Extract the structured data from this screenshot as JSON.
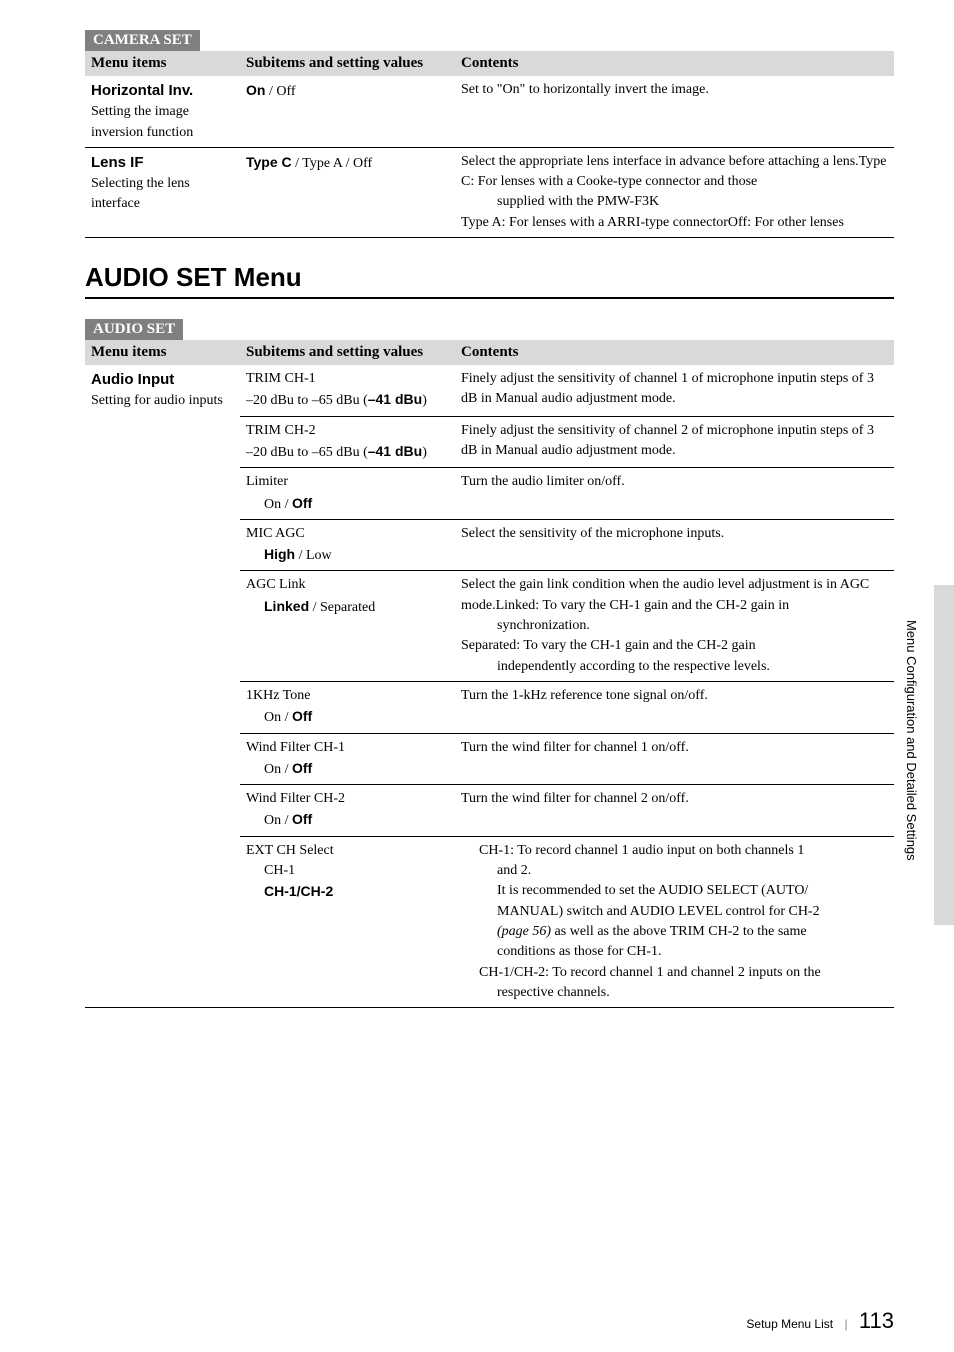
{
  "camera_set": {
    "badge": "CAMERA SET",
    "headers": {
      "menu": "Menu items",
      "sub": "Subitems and setting values",
      "cont": "Contents"
    },
    "rows": [
      {
        "menu_title": "Horizontal Inv.",
        "menu_desc": "Setting the image inversion function",
        "sub_bold": "On",
        "sub_rest": " / Off",
        "content_lines": [
          "Set to \"On\" to horizontally invert the image."
        ]
      },
      {
        "menu_title": "Lens IF",
        "menu_desc": "Selecting the lens interface",
        "sub_bold": "Type C",
        "sub_rest": " / Type A / Off",
        "content_lines": [
          "Select the appropriate lens interface in advance before attaching a lens.",
          "Type C: For lenses with a Cooke-type connector and those",
          "__IND__supplied with the PMW-F3K",
          "Type A: For lenses with a ARRI-type connector",
          "Off: For other lenses"
        ]
      }
    ]
  },
  "audio_heading": "AUDIO SET Menu",
  "audio_set": {
    "badge": "AUDIO SET",
    "headers": {
      "menu": "Menu items",
      "sub": "Subitems and setting values",
      "cont": "Contents"
    },
    "group": {
      "menu_title": "Audio Input",
      "menu_desc": "Setting for audio inputs",
      "subrows": [
        {
          "sub_lines": [
            {
              "plain": "TRIM CH-1"
            },
            {
              "plain": "–20 dBu to –65 dBu (",
              "bold": "–41 dBu",
              "after": ")"
            }
          ],
          "content_lines": [
            "Finely adjust the sensitivity of channel 1 of microphone input",
            "in steps of 3 dB in Manual audio adjustment mode."
          ]
        },
        {
          "sub_lines": [
            {
              "plain": "TRIM CH-2"
            },
            {
              "plain": "–20 dBu to –65 dBu (",
              "bold": "–41 dBu",
              "after": ")"
            }
          ],
          "content_lines": [
            "Finely adjust the sensitivity of channel 2 of microphone input",
            "in steps of 3 dB in Manual audio adjustment mode."
          ]
        },
        {
          "sub_lines": [
            {
              "plain": "Limiter"
            },
            {
              "indent": true,
              "plain": "On / ",
              "bold": "Off"
            }
          ],
          "content_lines": [
            "Turn the audio limiter on/off."
          ]
        },
        {
          "sub_lines": [
            {
              "plain": "MIC AGC"
            },
            {
              "indent": true,
              "bold": "High",
              "after": " / Low"
            }
          ],
          "content_lines": [
            "Select the sensitivity of the microphone inputs."
          ]
        },
        {
          "sub_lines": [
            {
              "plain": "AGC Link"
            },
            {
              "indent": true,
              "bold": "Linked",
              "after": " / Separated"
            }
          ],
          "content_lines": [
            "Select the gain link condition when the audio level adjustment is in AGC mode.",
            "Linked: To vary the CH-1 gain and the CH-2 gain in",
            "__IND__synchronization.",
            "Separated: To vary the CH-1 gain and the CH-2 gain",
            "__IND__independently according to the respective levels."
          ]
        },
        {
          "sub_lines": [
            {
              "plain": "1KHz Tone"
            },
            {
              "indent": true,
              "plain": "On / ",
              "bold": "Off"
            }
          ],
          "content_lines": [
            "Turn the 1-kHz reference tone signal on/off."
          ]
        },
        {
          "sub_lines": [
            {
              "plain": "Wind Filter CH-1"
            },
            {
              "indent": true,
              "plain": "On / ",
              "bold": "Off"
            }
          ],
          "content_lines": [
            "Turn the wind filter for channel 1 on/off."
          ]
        },
        {
          "sub_lines": [
            {
              "plain": "Wind Filter CH-2"
            },
            {
              "indent": true,
              "plain": "On / ",
              "bold": "Off"
            }
          ],
          "content_lines": [
            "Turn the wind filter for channel 2 on/off."
          ]
        },
        {
          "sub_lines": [
            {
              "plain": "EXT CH Select"
            },
            {
              "indent": true,
              "plain": "CH-1"
            },
            {
              "indent": true,
              "bold": "CH-1/CH-2"
            }
          ],
          "content_lines": [
            "__IND0__CH-1: To record channel 1 audio input on both channels 1",
            "__IND__and 2.",
            "__IND__It is recommended to set the AUDIO SELECT (AUTO/",
            "__IND__MANUAL) switch and AUDIO LEVEL control for CH-2",
            "__IND__<i>(page 56)</i> as well as the above TRIM CH-2 to the same",
            "__IND__conditions as those for CH-1.",
            "__IND0__CH-1/CH-2: To record channel 1 and channel 2 inputs on the",
            "__IND__respective channels."
          ]
        }
      ]
    }
  },
  "side_label": "Menu Configuration and Detailed Settings",
  "footer": {
    "label": "Setup Menu List",
    "page": "113"
  }
}
